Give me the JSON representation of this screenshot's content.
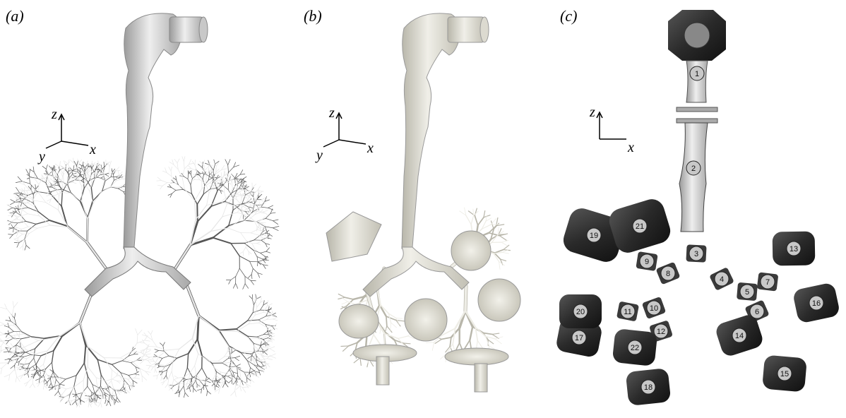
{
  "panels": [
    {
      "label": "(a)",
      "axes": [
        "z",
        "y",
        "x"
      ]
    },
    {
      "label": "(b)",
      "axes": [
        "z",
        "y",
        "x"
      ]
    },
    {
      "label": "(c)",
      "axes": [
        "z",
        "x"
      ],
      "parts": [
        "1",
        "2",
        "3",
        "4",
        "5",
        "6",
        "7",
        "8",
        "9",
        "10",
        "11",
        "12",
        "13",
        "14",
        "15",
        "16",
        "17",
        "18",
        "19",
        "20",
        "21",
        "22"
      ]
    }
  ]
}
